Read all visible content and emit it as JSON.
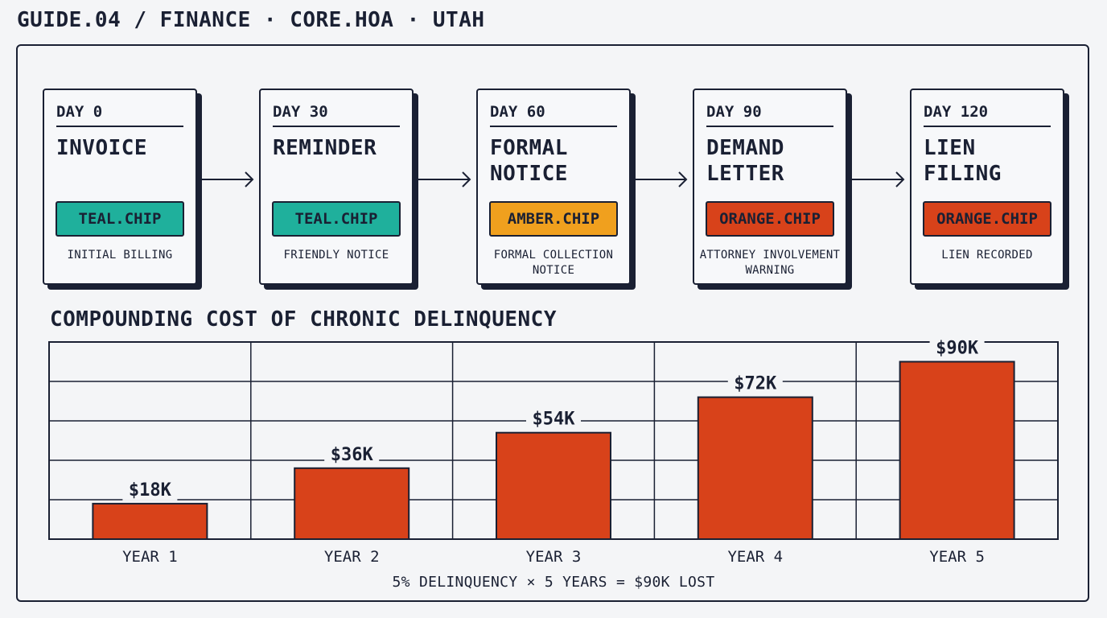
{
  "header": {
    "title": "GUIDE.04 / FINANCE · CORE.HOA · UTAH"
  },
  "colors": {
    "teal": "#1fb09c",
    "amber": "#f0a01e",
    "orange": "#d8421a",
    "ink": "#1a2033",
    "background": "#f4f5f7"
  },
  "timeline": [
    {
      "day": "DAY 0",
      "title": "INVOICE",
      "chip": "TEAL.CHIP",
      "chip_color": "teal",
      "desc": "INITIAL BILLING"
    },
    {
      "day": "DAY 30",
      "title": "REMINDER",
      "chip": "TEAL.CHIP",
      "chip_color": "teal",
      "desc": "FRIENDLY NOTICE"
    },
    {
      "day": "DAY 60",
      "title": "FORMAL\nNOTICE",
      "chip": "AMBER.CHIP",
      "chip_color": "amber",
      "desc": "FORMAL COLLECTION\nNOTICE"
    },
    {
      "day": "DAY 90",
      "title": "DEMAND\nLETTER",
      "chip": "ORANGE.CHIP",
      "chip_color": "orange",
      "desc": "ATTORNEY INVOLVEMENT\nWARNING"
    },
    {
      "day": "DAY 120",
      "title": "LIEN\nFILING",
      "chip": "ORANGE.CHIP",
      "chip_color": "orange",
      "desc": "LIEN RECORDED"
    }
  ],
  "chart_data": {
    "type": "bar",
    "title": "COMPOUNDING COST OF CHRONIC DELINQUENCY",
    "categories": [
      "YEAR 1",
      "YEAR 2",
      "YEAR 3",
      "YEAR 4",
      "YEAR 5"
    ],
    "values": [
      18,
      36,
      54,
      72,
      90
    ],
    "value_labels": [
      "$18K",
      "$36K",
      "$54K",
      "$72K",
      "$90K"
    ],
    "unit": "$K",
    "ylim": [
      0,
      100
    ],
    "grid": true,
    "bar_color": "#d8421a"
  },
  "footnote": "5% DELINQUENCY × 5 YEARS = $90K LOST"
}
